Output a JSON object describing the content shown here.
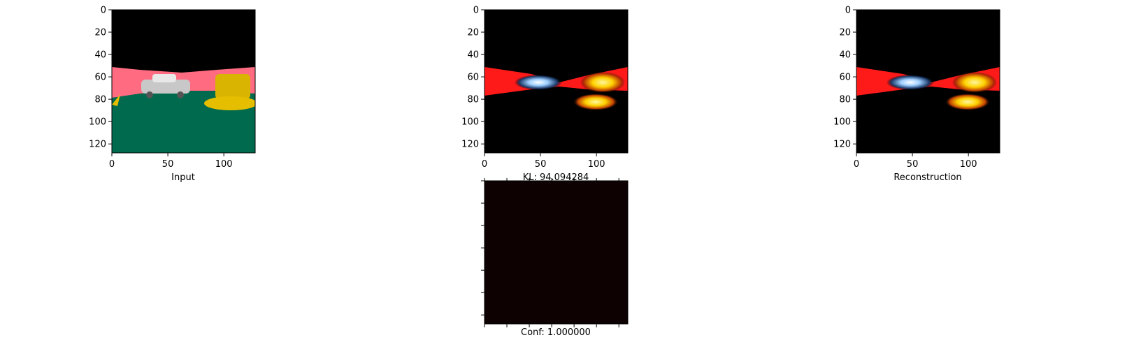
{
  "chart_data": [
    {
      "type": "heatmap",
      "panel": "input",
      "xlabel": "Input",
      "x_ticks": [
        "0",
        "50",
        "100"
      ],
      "y_ticks": [
        "0",
        "20",
        "40",
        "60",
        "80",
        "100",
        "120"
      ],
      "xlim": [
        0,
        128
      ],
      "ylim": [
        128,
        0
      ],
      "ticks_visible": true,
      "colors": {
        "sky": "#000000",
        "wall": "#ff6b81",
        "floor": "#006a4e",
        "object_yellow": "#e6be00",
        "car": "#c8c8c8"
      }
    },
    {
      "type": "heatmap",
      "panel": "kl",
      "xlabel": "KL: 94.094284",
      "x_ticks": [
        "0",
        "50",
        "100"
      ],
      "y_ticks": [
        "0",
        "20",
        "40",
        "60",
        "80",
        "100",
        "120"
      ],
      "xlim": [
        0,
        128
      ],
      "ylim": [
        128,
        0
      ],
      "ticks_visible": true,
      "colors": {
        "background": "#000000",
        "band": "#ff1a1a",
        "highlight": "#ffe000",
        "car_glow": "#9fd0ff"
      }
    },
    {
      "type": "heatmap",
      "panel": "reconstruction",
      "xlabel": "Reconstruction",
      "x_ticks": [
        "0",
        "50",
        "100"
      ],
      "y_ticks": [
        "0",
        "20",
        "40",
        "60",
        "80",
        "100",
        "120"
      ],
      "xlim": [
        0,
        128
      ],
      "ylim": [
        128,
        0
      ],
      "ticks_visible": true,
      "colors": {
        "background": "#000000",
        "band": "#ff1a1a",
        "highlight": "#ffe000",
        "car_glow": "#9fd0ff"
      }
    },
    {
      "type": "heatmap",
      "panel": "confidence",
      "xlabel": "Conf: 1.000000",
      "ticks_visible": false,
      "fill": "#0e0101"
    }
  ]
}
